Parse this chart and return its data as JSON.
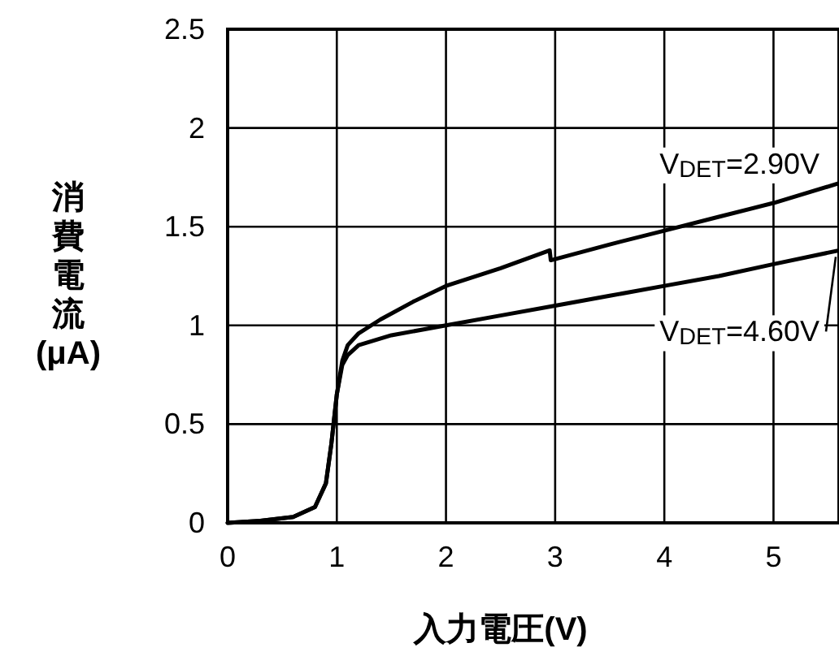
{
  "chart_data": {
    "type": "line",
    "xlabel": "入力電圧(V)",
    "ylabel": "消費電流(μA)",
    "xlim": [
      0,
      5.6
    ],
    "ylim": [
      0,
      2.5
    ],
    "xticks": [
      0,
      1,
      2,
      3,
      4,
      5
    ],
    "yticks": [
      0,
      0.5,
      1,
      1.5,
      2,
      2.5
    ],
    "grid": true,
    "marker": "none",
    "line_style": "solid",
    "series": [
      {
        "name": "V$_{DET}$=2.90V",
        "color": "#000000",
        "x": [
          0,
          0.3,
          0.6,
          0.8,
          0.9,
          0.95,
          1.0,
          1.05,
          1.1,
          1.2,
          1.4,
          1.7,
          2.0,
          2.5,
          2.95,
          2.96,
          3.5,
          4.0,
          4.5,
          5.0,
          5.6
        ],
        "values": [
          0,
          0.01,
          0.03,
          0.08,
          0.2,
          0.4,
          0.65,
          0.82,
          0.9,
          0.96,
          1.03,
          1.12,
          1.2,
          1.29,
          1.38,
          1.33,
          1.41,
          1.48,
          1.55,
          1.62,
          1.72
        ]
      },
      {
        "name": "V$_{DET}$=4.60V",
        "color": "#000000",
        "x": [
          0,
          0.3,
          0.6,
          0.8,
          0.9,
          0.95,
          1.0,
          1.05,
          1.1,
          1.2,
          1.5,
          2.0,
          2.5,
          3.0,
          3.5,
          4.0,
          4.5,
          5.0,
          5.6
        ],
        "values": [
          0,
          0.01,
          0.03,
          0.08,
          0.2,
          0.4,
          0.65,
          0.8,
          0.85,
          0.9,
          0.95,
          1.0,
          1.05,
          1.1,
          1.15,
          1.2,
          1.25,
          1.31,
          1.38
        ]
      }
    ]
  }
}
